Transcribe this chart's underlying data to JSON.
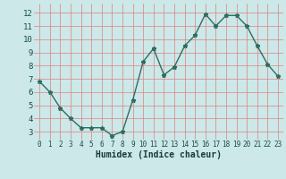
{
  "x": [
    0,
    1,
    2,
    3,
    4,
    5,
    6,
    7,
    8,
    9,
    10,
    11,
    12,
    13,
    14,
    15,
    16,
    17,
    18,
    19,
    20,
    21,
    22,
    23
  ],
  "y": [
    6.8,
    6.0,
    4.8,
    4.0,
    3.3,
    3.3,
    3.3,
    2.7,
    3.0,
    5.4,
    8.3,
    9.3,
    7.3,
    7.9,
    9.5,
    10.3,
    11.9,
    11.0,
    11.8,
    11.8,
    11.0,
    9.5,
    8.1,
    7.2
  ],
  "xlim": [
    -0.5,
    23.5
  ],
  "ylim": [
    2.4,
    12.7
  ],
  "yticks": [
    3,
    4,
    5,
    6,
    7,
    8,
    9,
    10,
    11,
    12
  ],
  "xticks": [
    0,
    1,
    2,
    3,
    4,
    5,
    6,
    7,
    8,
    9,
    10,
    11,
    12,
    13,
    14,
    15,
    16,
    17,
    18,
    19,
    20,
    21,
    22,
    23
  ],
  "xlabel": "Humidex (Indice chaleur)",
  "line_color": "#2d6e62",
  "marker": "*",
  "marker_size": 3.5,
  "bg_color": "#cce8e8",
  "grid_color": "#e08080",
  "grid_alpha": 1.0,
  "xlabel_fontsize": 7,
  "tick_fontsize_x": 5.5,
  "tick_fontsize_y": 6.5,
  "linewidth": 1.0
}
